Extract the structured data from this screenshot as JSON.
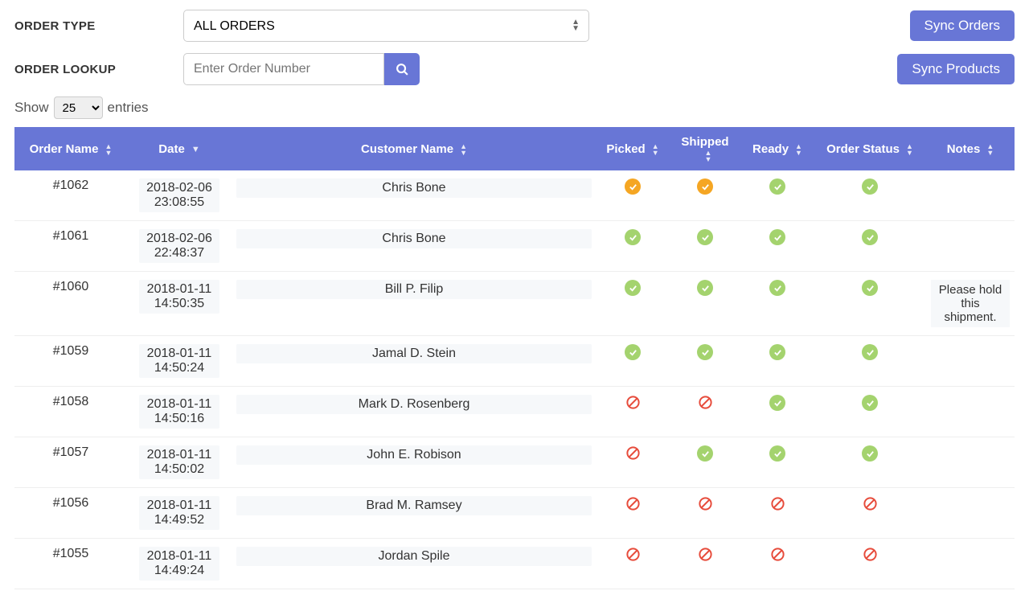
{
  "colors": {
    "primary": "#6876d6",
    "check_bg": "#a4d36e",
    "warn_bg": "#f5a623",
    "no_stroke": "#e74c3c",
    "row_pill_bg": "#f6f8fa"
  },
  "filters": {
    "order_type_label": "ORDER TYPE",
    "order_type_value": "ALL ORDERS",
    "order_lookup_label": "ORDER LOOKUP",
    "order_lookup_placeholder": "Enter Order Number"
  },
  "buttons": {
    "sync_orders": "Sync Orders",
    "sync_products": "Sync Products"
  },
  "entries": {
    "show_label": "Show",
    "count": "25",
    "entries_label": "entries"
  },
  "table": {
    "headers": {
      "order_name": "Order Name",
      "date": "Date",
      "customer_name": "Customer Name",
      "picked": "Picked",
      "shipped": "Shipped",
      "ready": "Ready",
      "order_status": "Order Status",
      "notes": "Notes"
    },
    "rows": [
      {
        "order": "#1062",
        "date1": "2018-02-06",
        "date2": "23:08:55",
        "customer": "Chris Bone",
        "picked": "warn",
        "shipped": "warn",
        "ready": "check",
        "status": "check",
        "notes": ""
      },
      {
        "order": "#1061",
        "date1": "2018-02-06",
        "date2": "22:48:37",
        "customer": "Chris Bone",
        "picked": "check",
        "shipped": "check",
        "ready": "check",
        "status": "check",
        "notes": ""
      },
      {
        "order": "#1060",
        "date1": "2018-01-11",
        "date2": "14:50:35",
        "customer": "Bill P. Filip",
        "picked": "check",
        "shipped": "check",
        "ready": "check",
        "status": "check",
        "notes": "Please hold this shipment."
      },
      {
        "order": "#1059",
        "date1": "2018-01-11",
        "date2": "14:50:24",
        "customer": "Jamal D. Stein",
        "picked": "check",
        "shipped": "check",
        "ready": "check",
        "status": "check",
        "notes": ""
      },
      {
        "order": "#1058",
        "date1": "2018-01-11",
        "date2": "14:50:16",
        "customer": "Mark D. Rosenberg",
        "picked": "no",
        "shipped": "no",
        "ready": "check",
        "status": "check",
        "notes": ""
      },
      {
        "order": "#1057",
        "date1": "2018-01-11",
        "date2": "14:50:02",
        "customer": "John E. Robison",
        "picked": "no",
        "shipped": "check",
        "ready": "check",
        "status": "check",
        "notes": ""
      },
      {
        "order": "#1056",
        "date1": "2018-01-11",
        "date2": "14:49:52",
        "customer": "Brad M. Ramsey",
        "picked": "no",
        "shipped": "no",
        "ready": "no",
        "status": "no",
        "notes": ""
      },
      {
        "order": "#1055",
        "date1": "2018-01-11",
        "date2": "14:49:24",
        "customer": "Jordan Spile",
        "picked": "no",
        "shipped": "no",
        "ready": "no",
        "status": "no",
        "notes": ""
      }
    ]
  }
}
